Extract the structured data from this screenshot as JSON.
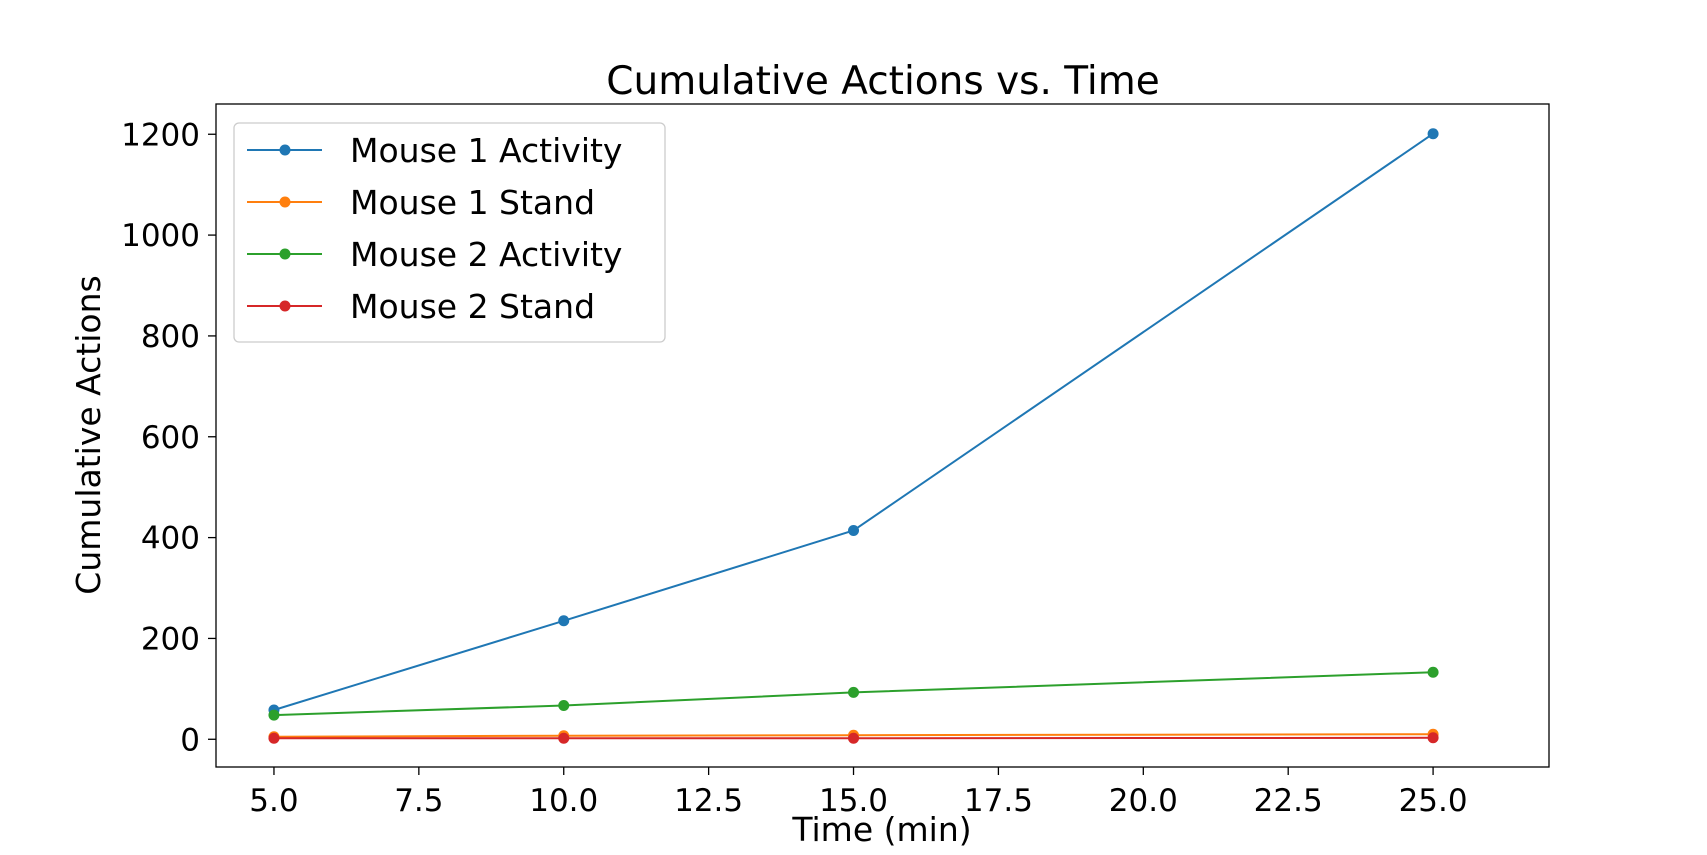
{
  "chart_data": {
    "type": "line",
    "title": "Cumulative Actions vs. Time",
    "xlabel": "Time (min)",
    "ylabel": "Cumulative Actions",
    "x": [
      5,
      10,
      15,
      25
    ],
    "xlim": [
      4,
      27
    ],
    "ylim": [
      -55,
      1260
    ],
    "xticks": [
      5.0,
      7.5,
      10.0,
      12.5,
      15.0,
      17.5,
      20.0,
      22.5,
      25.0
    ],
    "xtick_labels": [
      "5.0",
      "7.5",
      "10.0",
      "12.5",
      "15.0",
      "17.5",
      "20.0",
      "22.5",
      "25.0"
    ],
    "yticks": [
      0,
      200,
      400,
      600,
      800,
      1000,
      1200
    ],
    "ytick_labels": [
      "0",
      "200",
      "400",
      "600",
      "800",
      "1000",
      "1200"
    ],
    "grid": false,
    "legend_position": "upper-left",
    "series": [
      {
        "name": "Mouse 1 Activity",
        "color": "#1f77b4",
        "values": [
          58,
          235,
          414,
          1201
        ]
      },
      {
        "name": "Mouse 1 Stand",
        "color": "#ff7f0e",
        "values": [
          5,
          7,
          8,
          10
        ]
      },
      {
        "name": "Mouse 2 Activity",
        "color": "#2ca02c",
        "values": [
          48,
          67,
          93,
          133
        ]
      },
      {
        "name": "Mouse 2 Stand",
        "color": "#d62728",
        "values": [
          2,
          2,
          2,
          3
        ]
      }
    ]
  }
}
